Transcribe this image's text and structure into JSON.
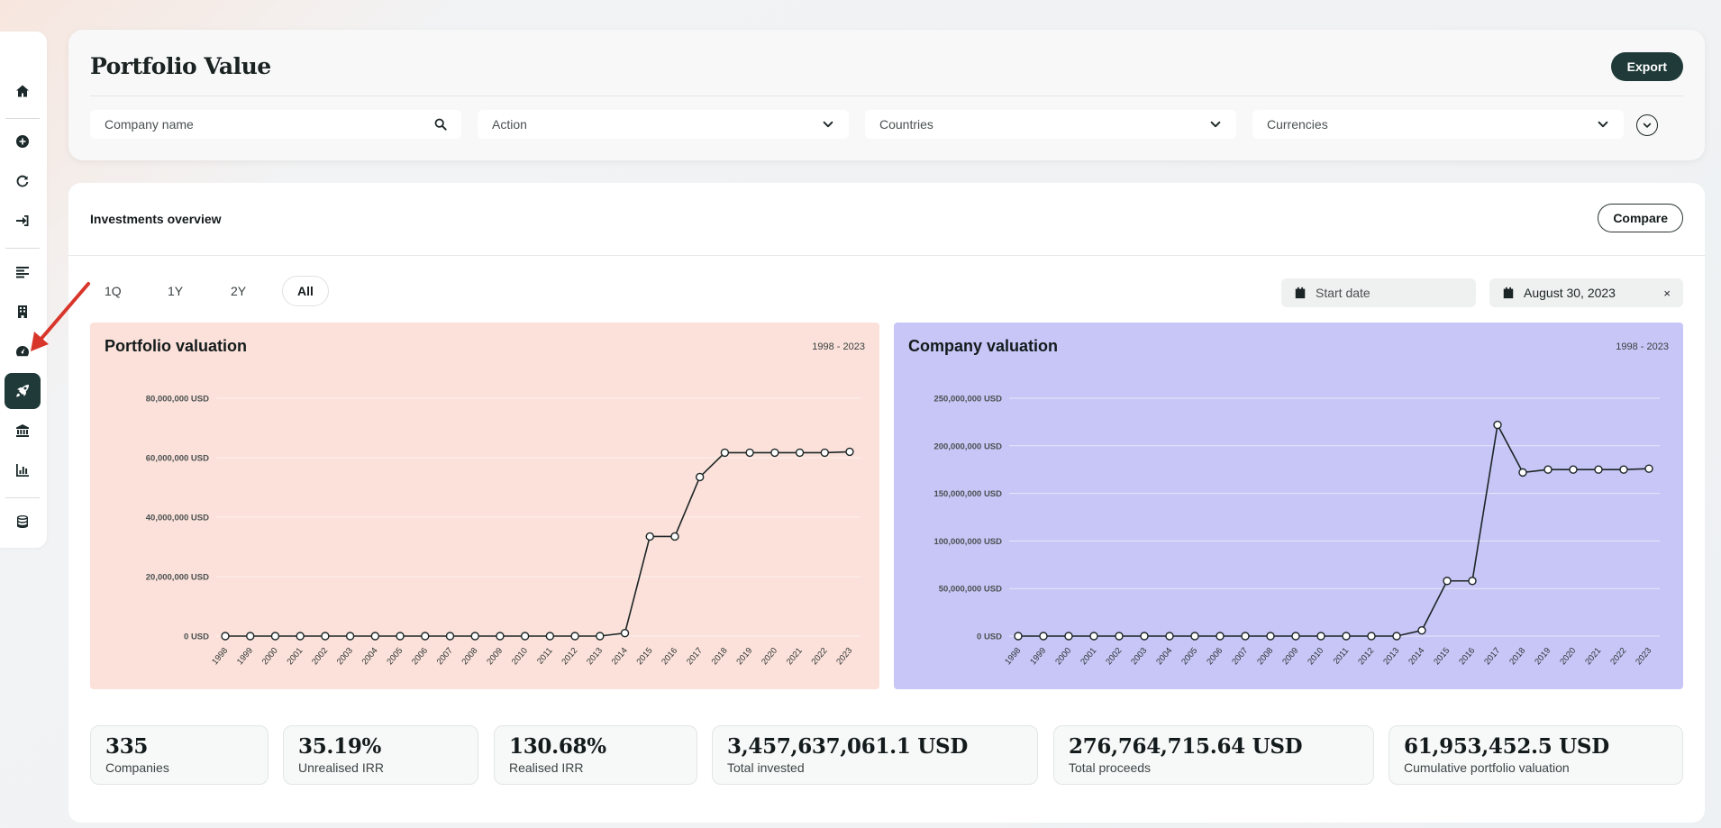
{
  "sidebar": {
    "items": [
      {
        "icon": "home-icon"
      },
      {
        "icon": "plus-circle-icon"
      },
      {
        "icon": "refresh-icon"
      },
      {
        "icon": "sign-in-icon"
      },
      {
        "icon": "align-left-icon"
      },
      {
        "icon": "building-icon"
      },
      {
        "icon": "dashboard-icon"
      },
      {
        "icon": "rocket-icon",
        "active": true
      },
      {
        "icon": "bank-icon"
      },
      {
        "icon": "bar-chart-icon"
      },
      {
        "icon": "database-icon"
      }
    ]
  },
  "header": {
    "title": "Portfolio Value",
    "export_label": "Export",
    "filters": {
      "company_placeholder": "Company name",
      "action": "Action",
      "countries": "Countries",
      "currencies": "Currencies"
    }
  },
  "main": {
    "section_title": "Investments overview",
    "compare_label": "Compare",
    "range_tabs": [
      "1Q",
      "1Y",
      "2Y",
      "All"
    ],
    "active_range": "All",
    "start_date_placeholder": "Start date",
    "end_date": "August 30, 2023",
    "clear_symbol": "×"
  },
  "colors": {
    "accent": "#1f3a38",
    "portfolio_panel": "#fbe1d9",
    "company_panel": "#c7c6f6",
    "arrow": "#d9362b"
  },
  "chart_data": [
    {
      "type": "line",
      "title": "Portfolio valuation",
      "subtitle": "1998 - 2023",
      "x": [
        "1998",
        "1999",
        "2000",
        "2001",
        "2002",
        "2003",
        "2004",
        "2005",
        "2006",
        "2007",
        "2008",
        "2009",
        "2010",
        "2011",
        "2012",
        "2013",
        "2014",
        "2015",
        "2016",
        "2017",
        "2018",
        "2019",
        "2020",
        "2021",
        "2022",
        "2023"
      ],
      "values": [
        0,
        0,
        0,
        0,
        0,
        0,
        0,
        0,
        0,
        0,
        0,
        0,
        0,
        0,
        0,
        0,
        1000000,
        33500000,
        33500000,
        53500000,
        61700000,
        61700000,
        61700000,
        61700000,
        61700000,
        62000000
      ],
      "ylim": [
        0,
        80000000
      ],
      "yticks": [
        0,
        20000000,
        40000000,
        60000000,
        80000000
      ],
      "ytick_labels": [
        "0 USD",
        "20,000,000 USD",
        "40,000,000 USD",
        "60,000,000 USD",
        "80,000,000 USD"
      ],
      "grid": true
    },
    {
      "type": "line",
      "title": "Company valuation",
      "subtitle": "1998 - 2023",
      "x": [
        "1998",
        "1999",
        "2000",
        "2001",
        "2002",
        "2003",
        "2004",
        "2005",
        "2006",
        "2007",
        "2008",
        "2009",
        "2010",
        "2011",
        "2012",
        "2013",
        "2014",
        "2015",
        "2016",
        "2017",
        "2018",
        "2019",
        "2020",
        "2021",
        "2022",
        "2023"
      ],
      "values": [
        0,
        0,
        0,
        0,
        0,
        0,
        0,
        0,
        0,
        0,
        0,
        0,
        0,
        0,
        0,
        0,
        6000000,
        58000000,
        58000000,
        222000000,
        172000000,
        175000000,
        175000000,
        175000000,
        175000000,
        176000000
      ],
      "ylim": [
        0,
        250000000
      ],
      "yticks": [
        0,
        50000000,
        100000000,
        150000000,
        200000000,
        250000000
      ],
      "ytick_labels": [
        "0 USD",
        "50,000,000 USD",
        "100,000,000 USD",
        "150,000,000 USD",
        "200,000,000 USD",
        "250,000,000 USD"
      ],
      "grid": true
    }
  ],
  "stats": [
    {
      "value": "335",
      "label": "Companies"
    },
    {
      "value": "35.19%",
      "label": "Unrealised IRR"
    },
    {
      "value": "130.68%",
      "label": "Realised IRR"
    },
    {
      "value": "3,457,637,061.1 USD",
      "label": "Total invested"
    },
    {
      "value": "276,764,715.64 USD",
      "label": "Total proceeds"
    },
    {
      "value": "61,953,452.5 USD",
      "label": "Cumulative portfolio valuation"
    }
  ]
}
